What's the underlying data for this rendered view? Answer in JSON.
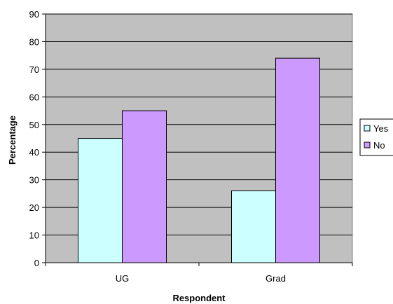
{
  "chart_data": {
    "type": "bar",
    "categories": [
      "UG",
      "Grad"
    ],
    "series": [
      {
        "name": "Yes",
        "values": [
          45,
          26
        ],
        "color": "#ccffff"
      },
      {
        "name": "No",
        "values": [
          55,
          74
        ],
        "color": "#cc99ff"
      }
    ],
    "xlabel": "Respondent",
    "ylabel": "Percentage",
    "ylim": [
      0,
      90
    ],
    "yticks": [
      0,
      10,
      20,
      30,
      40,
      50,
      60,
      70,
      80,
      90
    ],
    "grid": true,
    "plot_background": "#c0c0c0",
    "legend_position": "right"
  }
}
